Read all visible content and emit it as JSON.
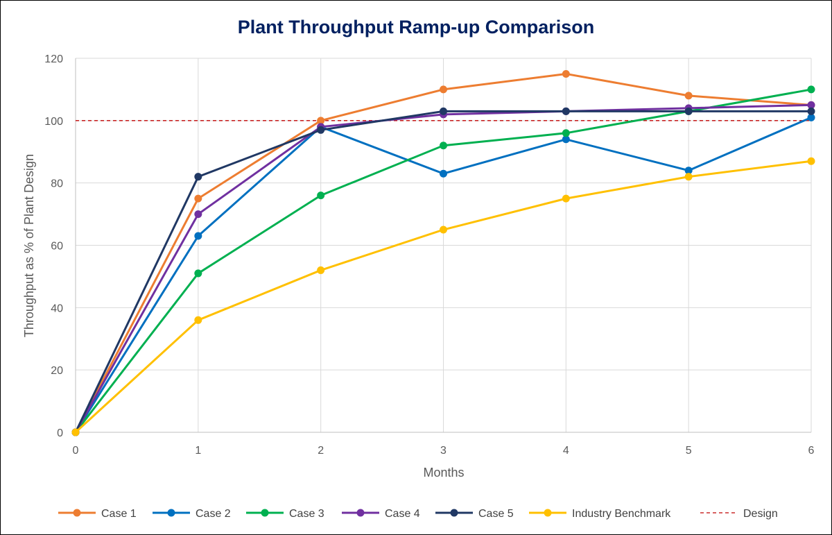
{
  "chart_data": {
    "type": "line",
    "title": "Plant Throughput Ramp-up Comparison",
    "xlabel": "Months",
    "ylabel": "Throughput as % of Plant Design",
    "x": [
      0,
      1,
      2,
      3,
      4,
      5,
      6
    ],
    "xlim": [
      0,
      6
    ],
    "ylim": [
      0,
      120
    ],
    "yticks": [
      0,
      20,
      40,
      60,
      80,
      100,
      120
    ],
    "grid": true,
    "legend_position": "bottom",
    "series": [
      {
        "name": "Case 1",
        "color": "#ED7D31",
        "values": [
          0,
          75,
          100,
          110,
          115,
          108,
          105
        ]
      },
      {
        "name": "Case 2",
        "color": "#0070C0",
        "values": [
          0,
          63,
          98,
          83,
          94,
          84,
          101
        ]
      },
      {
        "name": "Case 3",
        "color": "#00B050",
        "values": [
          0,
          51,
          76,
          92,
          96,
          103,
          110
        ]
      },
      {
        "name": "Case 4",
        "color": "#7030A0",
        "values": [
          0,
          70,
          98,
          102,
          103,
          104,
          105
        ]
      },
      {
        "name": "Case 5",
        "color": "#203864",
        "values": [
          0,
          82,
          97,
          103,
          103,
          103,
          103
        ]
      },
      {
        "name": "Industry Benchmark",
        "color": "#FFC000",
        "values": [
          0,
          36,
          52,
          65,
          75,
          82,
          87
        ]
      }
    ],
    "reference_lines": [
      {
        "name": "Design",
        "value": 100,
        "color": "#C00000",
        "style": "dashed"
      }
    ],
    "title_color": "#002060"
  }
}
